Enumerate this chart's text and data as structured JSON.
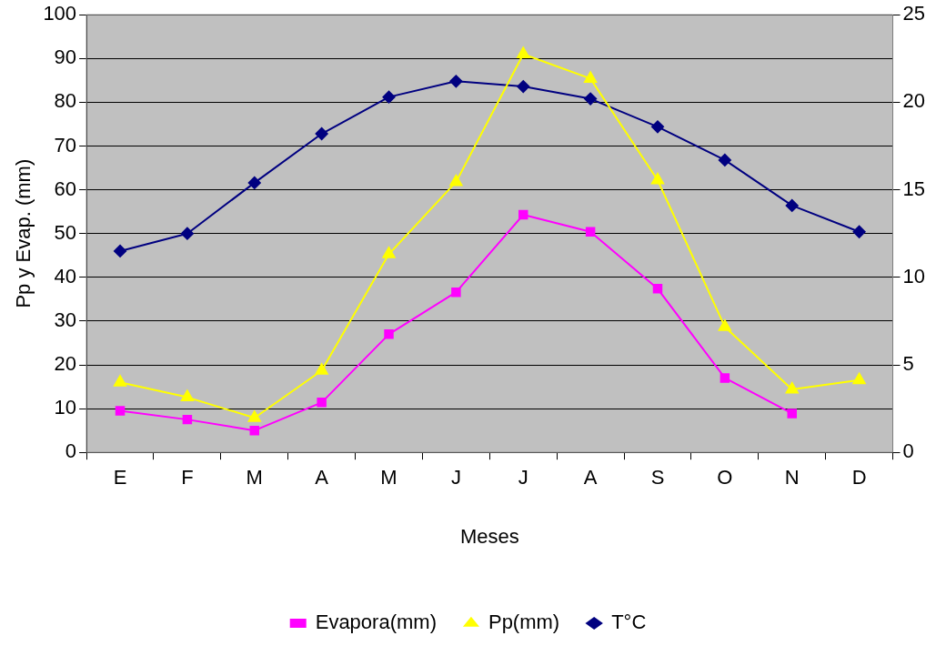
{
  "chart_data": {
    "type": "line",
    "xlabel": "Meses",
    "ylabel": "Pp y Evap. (mm)",
    "categories": [
      "E",
      "F",
      "M",
      "A",
      "M",
      "J",
      "J",
      "A",
      "S",
      "O",
      "N",
      "D"
    ],
    "ylim": [
      0,
      100
    ],
    "yticks": [
      0,
      10,
      20,
      30,
      40,
      50,
      60,
      70,
      80,
      90,
      100
    ],
    "y2lim": [
      0,
      25
    ],
    "y2ticks": [
      0,
      5,
      10,
      15,
      20,
      25
    ],
    "grid": "y",
    "legend": "bottom",
    "line_style": "solid",
    "series": [
      {
        "name": "Evapora(mm)",
        "color": "#ff00ff",
        "marker": "square",
        "values": [
          9.5,
          7.5,
          5,
          11.4,
          27,
          36.6,
          54.3,
          50.4,
          37.4,
          17,
          8.9,
          null
        ]
      },
      {
        "name": "Pp(mm)",
        "color": "#ffff00",
        "marker": "triangle",
        "values": [
          16,
          12.6,
          7.9,
          18.7,
          45.3,
          61.8,
          91,
          85.4,
          62.2,
          28.7,
          14.4,
          16.5
        ]
      },
      {
        "name": "T°C",
        "color": "#000080",
        "marker": "diamond",
        "axis": "y2",
        "values": [
          11.5,
          12.5,
          15.4,
          18.2,
          20.3,
          21.2,
          20.9,
          20.2,
          18.6,
          16.7,
          14.1,
          12.6
        ]
      }
    ]
  }
}
